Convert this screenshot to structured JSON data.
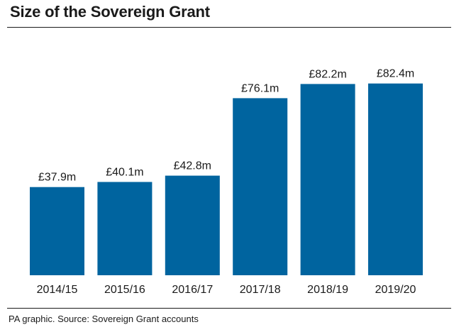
{
  "header": {
    "title": "Size of the Sovereign Grant"
  },
  "footer": {
    "source": "PA graphic. Source: Sovereign Grant accounts"
  },
  "colors": {
    "bar": "#00649f",
    "text": "#1a1a1a"
  },
  "chart_data": {
    "type": "bar",
    "title": "Size of the Sovereign Grant",
    "categories": [
      "2014/15",
      "2015/16",
      "2016/17",
      "2017/18",
      "2018/19",
      "2019/20"
    ],
    "values": [
      37.9,
      40.1,
      42.8,
      76.1,
      82.2,
      82.4
    ],
    "data_labels": [
      "£37.9m",
      "£40.1m",
      "£42.8m",
      "£76.1m",
      "£82.2m",
      "£82.4m"
    ],
    "xlabel": "",
    "ylabel": "",
    "ylim": [
      0,
      100
    ],
    "grid": false,
    "legend": "none"
  }
}
